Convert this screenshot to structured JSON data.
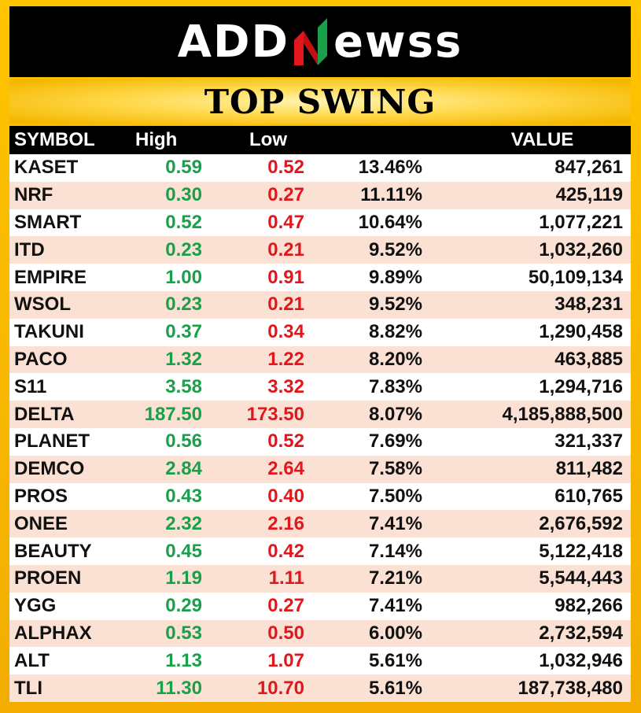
{
  "brand": {
    "logo_left": "ADD",
    "logo_right": "ewss"
  },
  "title": "TOP SWING",
  "columns": {
    "symbol": "SYMBOL",
    "high": "High",
    "low": "Low",
    "pct": "",
    "value": "VALUE"
  },
  "colors": {
    "high": "#1aa04a",
    "low": "#e3161b",
    "accent": "#f5b800",
    "row_alt": "#fbe1d4"
  },
  "rows": [
    {
      "symbol": "KASET",
      "high": "0.59",
      "low": "0.52",
      "pct": "13.46%",
      "value": "847,261"
    },
    {
      "symbol": "NRF",
      "high": "0.30",
      "low": "0.27",
      "pct": "11.11%",
      "value": "425,119"
    },
    {
      "symbol": "SMART",
      "high": "0.52",
      "low": "0.47",
      "pct": "10.64%",
      "value": "1,077,221"
    },
    {
      "symbol": "ITD",
      "high": "0.23",
      "low": "0.21",
      "pct": "9.52%",
      "value": "1,032,260"
    },
    {
      "symbol": "EMPIRE",
      "high": "1.00",
      "low": "0.91",
      "pct": "9.89%",
      "value": "50,109,134"
    },
    {
      "symbol": "WSOL",
      "high": "0.23",
      "low": "0.21",
      "pct": "9.52%",
      "value": "348,231"
    },
    {
      "symbol": "TAKUNI",
      "high": "0.37",
      "low": "0.34",
      "pct": "8.82%",
      "value": "1,290,458"
    },
    {
      "symbol": "PACO",
      "high": "1.32",
      "low": "1.22",
      "pct": "8.20%",
      "value": "463,885"
    },
    {
      "symbol": "S11",
      "high": "3.58",
      "low": "3.32",
      "pct": "7.83%",
      "value": "1,294,716"
    },
    {
      "symbol": "DELTA",
      "high": "187.50",
      "low": "173.50",
      "pct": "8.07%",
      "value": "4,185,888,500"
    },
    {
      "symbol": "PLANET",
      "high": "0.56",
      "low": "0.52",
      "pct": "7.69%",
      "value": "321,337"
    },
    {
      "symbol": "DEMCO",
      "high": "2.84",
      "low": "2.64",
      "pct": "7.58%",
      "value": "811,482"
    },
    {
      "symbol": "PROS",
      "high": "0.43",
      "low": "0.40",
      "pct": "7.50%",
      "value": "610,765"
    },
    {
      "symbol": "ONEE",
      "high": "2.32",
      "low": "2.16",
      "pct": "7.41%",
      "value": "2,676,592"
    },
    {
      "symbol": "BEAUTY",
      "high": "0.45",
      "low": "0.42",
      "pct": "7.14%",
      "value": "5,122,418"
    },
    {
      "symbol": "PROEN",
      "high": "1.19",
      "low": "1.11",
      "pct": "7.21%",
      "value": "5,544,443"
    },
    {
      "symbol": "YGG",
      "high": "0.29",
      "low": "0.27",
      "pct": "7.41%",
      "value": "982,266"
    },
    {
      "symbol": "ALPHAX",
      "high": "0.53",
      "low": "0.50",
      "pct": "6.00%",
      "value": "2,732,594"
    },
    {
      "symbol": "ALT",
      "high": "1.13",
      "low": "1.07",
      "pct": "5.61%",
      "value": "1,032,946"
    },
    {
      "symbol": "TLI",
      "high": "11.30",
      "low": "10.70",
      "pct": "5.61%",
      "value": "187,738,480"
    }
  ]
}
